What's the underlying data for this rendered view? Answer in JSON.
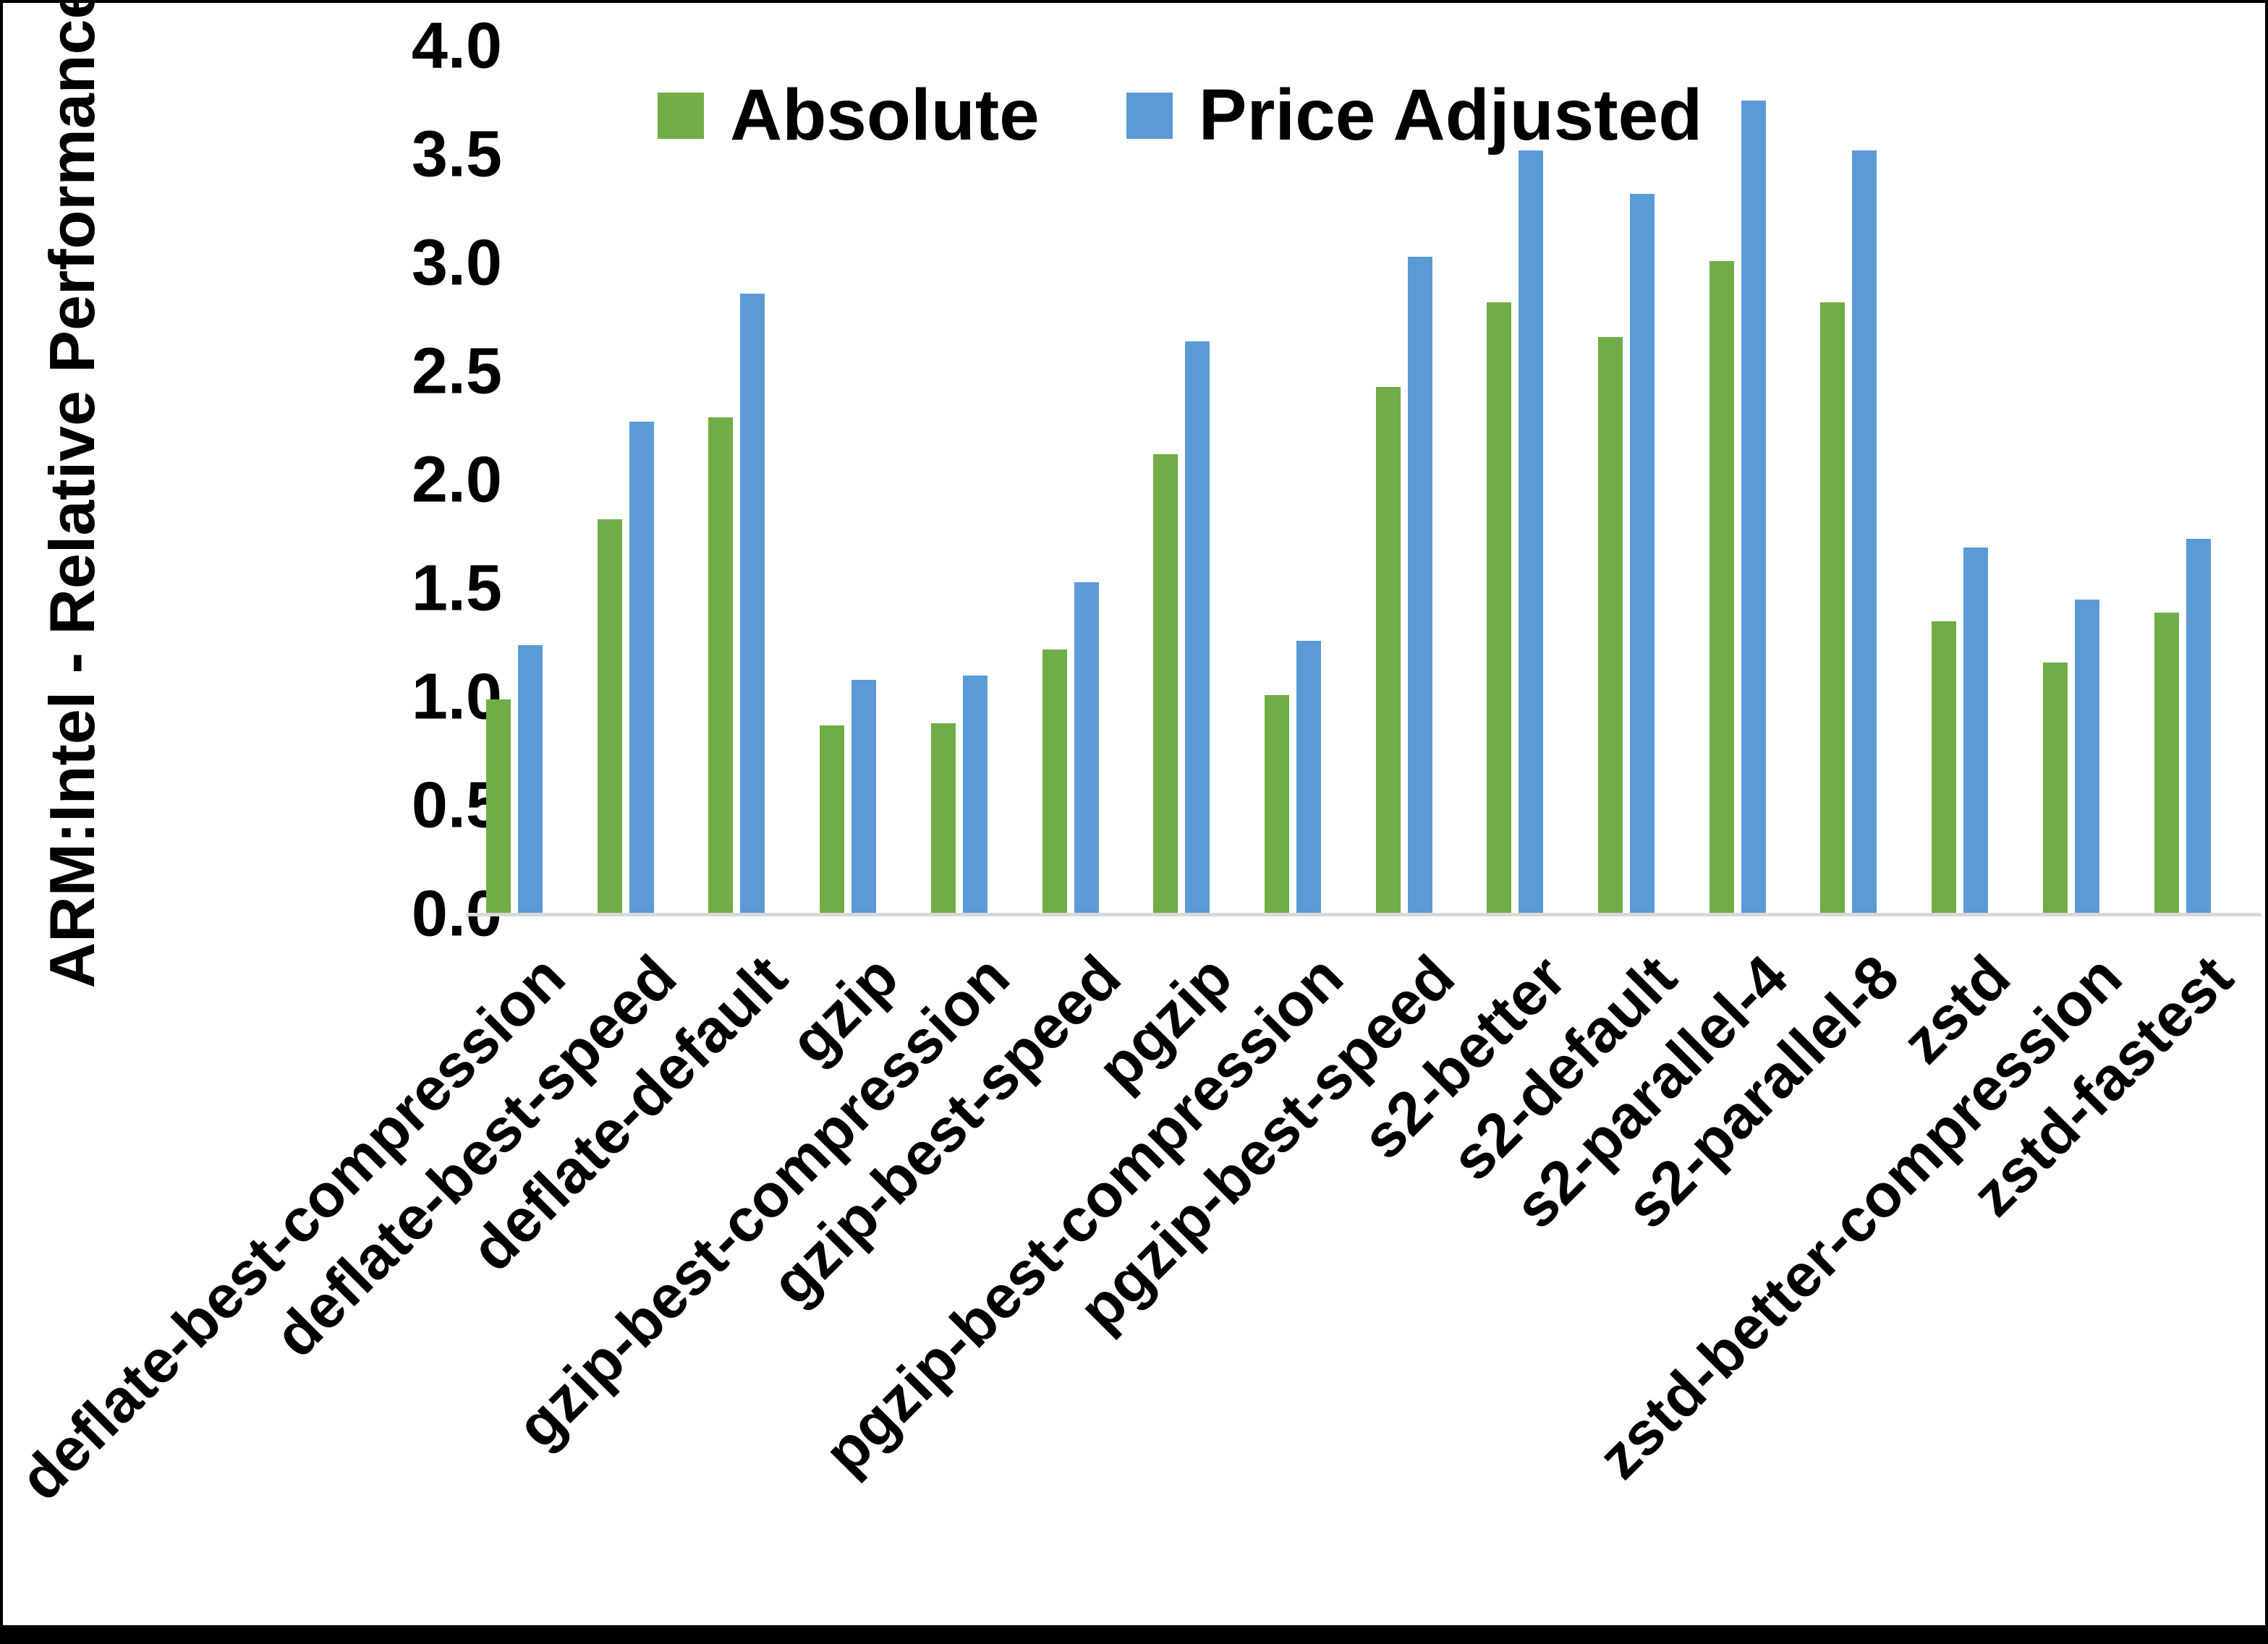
{
  "colors": {
    "absolute_green": "#70AD47",
    "price_adjusted_blue": "#5B9BD5",
    "axis_line": "#D9D9D9",
    "text": "#000000",
    "border": "#000000"
  },
  "chart_data": {
    "type": "bar",
    "title": "",
    "ylabel": "ARM:Intel - Relative Performance",
    "xlabel": "",
    "ylim": [
      0.0,
      4.0
    ],
    "ytick_step": 0.5,
    "yticks": [
      "4.0",
      "3.5",
      "3.0",
      "2.5",
      "2.0",
      "1.5",
      "1.0",
      "0.5",
      "0.0"
    ],
    "grid": false,
    "legend_position": "top",
    "categories": [
      "deflate-best-compression",
      "deflate-best-speed",
      "deflate-default",
      "gzip",
      "gzip-best-compression",
      "gzip-best-speed",
      "pgzip",
      "pgzip-best-compression",
      "pgzip-best-speed",
      "s2-better",
      "s2-default",
      "s2-parallel-4",
      "s2-parallel-8",
      "zstd",
      "zstd-better-compression",
      "zstd-fastest"
    ],
    "series": [
      {
        "name": "Absolute",
        "color": "#70AD47",
        "values": [
          0.99,
          1.82,
          2.29,
          0.87,
          0.88,
          1.22,
          2.12,
          1.01,
          2.43,
          2.82,
          2.66,
          3.01,
          2.82,
          1.35,
          1.16,
          1.39
        ]
      },
      {
        "name": "Price Adjusted",
        "color": "#5B9BD5",
        "values": [
          1.24,
          2.27,
          2.86,
          1.08,
          1.1,
          1.53,
          2.64,
          1.26,
          3.03,
          3.52,
          3.32,
          3.75,
          3.52,
          1.69,
          1.45,
          1.73
        ]
      }
    ]
  }
}
